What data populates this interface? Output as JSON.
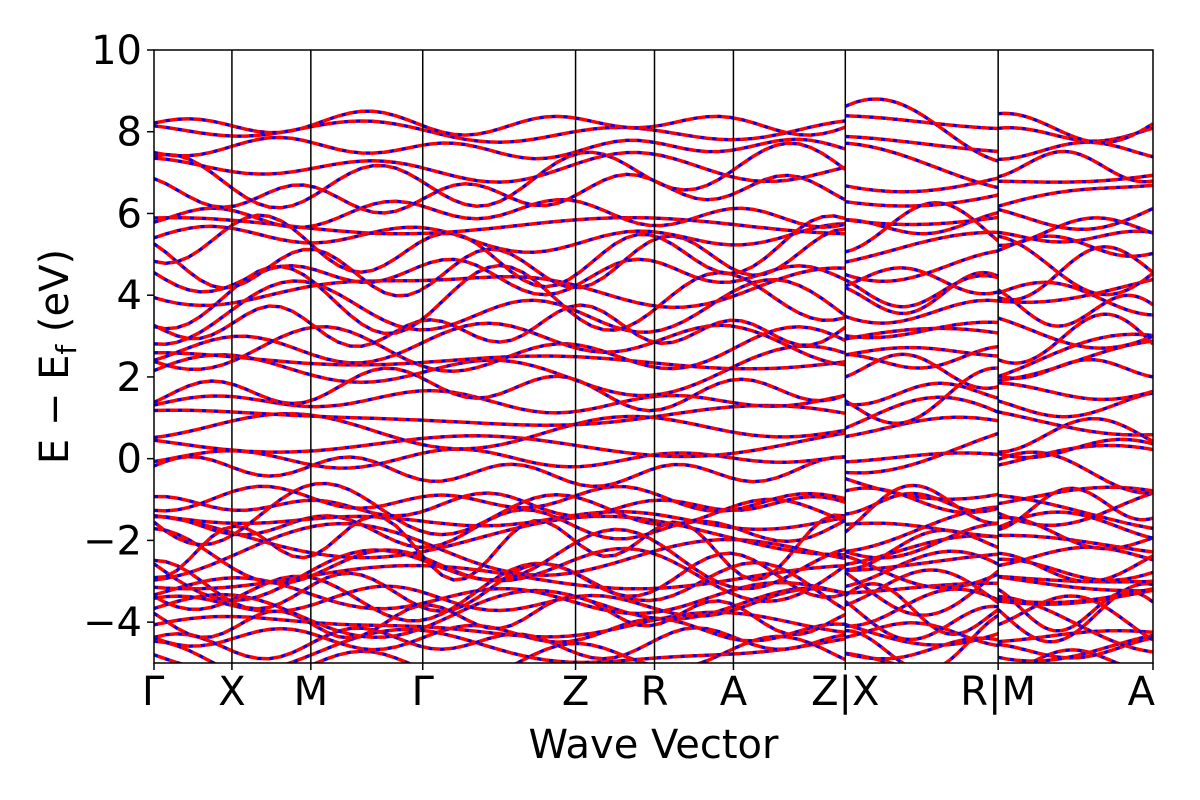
{
  "chart_data": {
    "type": "line",
    "xlabel": "Wave Vector",
    "ylabel": "E − E",
    "ylabel_sub": "f",
    "ylabel_unit": " (eV)",
    "ylim": [
      -5,
      10
    ],
    "yticks": [
      {
        "value": -4,
        "label": "−4"
      },
      {
        "value": -2,
        "label": "−2"
      },
      {
        "value": 0,
        "label": "0"
      },
      {
        "value": 2,
        "label": "2"
      },
      {
        "value": 4,
        "label": "4"
      },
      {
        "value": 6,
        "label": "6"
      },
      {
        "value": 8,
        "label": "8"
      },
      {
        "value": 10,
        "label": "10"
      }
    ],
    "xlim": [
      0,
      1
    ],
    "kpoints": [
      {
        "pos": 0.0,
        "label": "Γ"
      },
      {
        "pos": 0.078,
        "label": "X"
      },
      {
        "pos": 0.157,
        "label": "M"
      },
      {
        "pos": 0.269,
        "label": "Γ"
      },
      {
        "pos": 0.422,
        "label": "Z"
      },
      {
        "pos": 0.501,
        "label": "R"
      },
      {
        "pos": 0.58,
        "label": "A"
      },
      {
        "pos": 0.692,
        "label": "Z|X"
      },
      {
        "pos": 0.845,
        "label": "R|M"
      },
      {
        "pos": 1.0,
        "label": "A"
      }
    ],
    "segment_breaks": [
      0.692,
      0.845
    ],
    "series": [
      {
        "color": "#ff0000",
        "style": "solid"
      },
      {
        "color": "#0000ff",
        "style": "dashed"
      }
    ],
    "note_bands_per_path": "dense overlapping red/blue band curves spanning -5 to 8.7 eV",
    "band_levels": [
      -4.9,
      -4.7,
      -4.5,
      -4.3,
      -4.1,
      -3.9,
      -3.7,
      -3.5,
      -3.35,
      -3.2,
      -3.05,
      -2.9,
      -2.7,
      -2.5,
      -2.3,
      -2.1,
      -1.9,
      -1.7,
      -1.5,
      -1.3,
      -1.15,
      -1.0,
      -0.3,
      0.0,
      0.35,
      0.7,
      1.0,
      1.4,
      1.7,
      2.1,
      2.4,
      2.6,
      2.8,
      3.2,
      3.6,
      3.9,
      4.2,
      4.5,
      4.8,
      5.1,
      5.4,
      5.7,
      6.0,
      6.5,
      6.9,
      7.1,
      7.6,
      8.0,
      8.2
    ]
  }
}
